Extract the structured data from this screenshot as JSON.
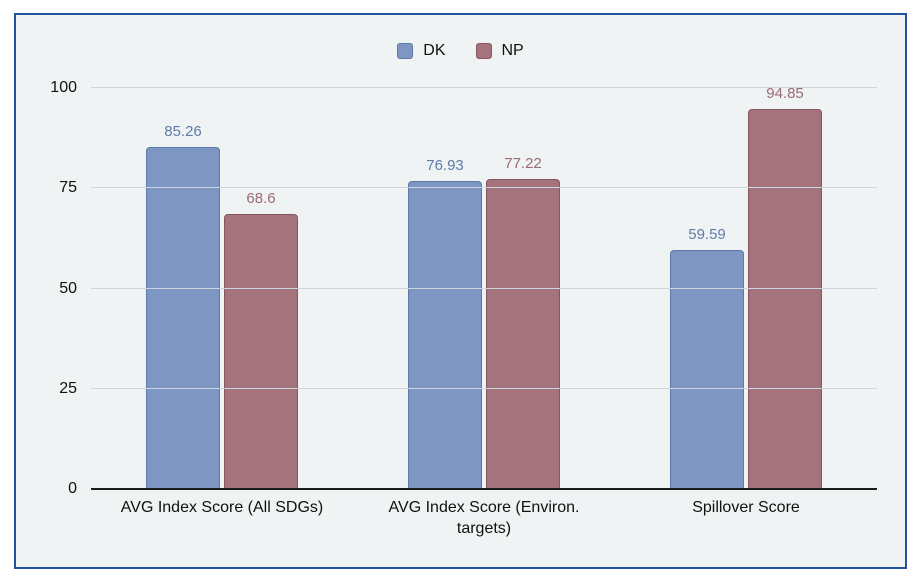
{
  "frame": {
    "border_color": "#24529e",
    "background": "#eff3f4"
  },
  "legend": {
    "position": "top-center",
    "items": [
      {
        "label": "DK",
        "color": "#7e97c2",
        "border_color": "#5b79a9"
      },
      {
        "label": "NP",
        "color": "#a5737b",
        "border_color": "#85565f"
      }
    ]
  },
  "chart_data": {
    "type": "bar",
    "title": "",
    "xlabel": "",
    "ylabel": "",
    "categories": [
      "AVG Index Score (All SDGs)",
      "AVG Index Score (Environ. targets)",
      "Spillover Score"
    ],
    "series": [
      {
        "name": "DK",
        "values": [
          85.26,
          76.93,
          59.59
        ],
        "value_labels": [
          "85.26",
          "76.93",
          "59.59"
        ],
        "color": "#7e97c2",
        "border_color": "#5b79a9",
        "label_color": "#5f7ca8"
      },
      {
        "name": "NP",
        "values": [
          68.6,
          77.22,
          94.85
        ],
        "value_labels": [
          "68.6",
          "77.22",
          "94.85"
        ],
        "color": "#a5737b",
        "border_color": "#85565f",
        "label_color": "#9b6a74"
      }
    ],
    "ylim": [
      0,
      100
    ],
    "yticks": [
      0,
      25,
      50,
      75,
      100
    ],
    "grid": true,
    "gridline_color": "#ccd5de",
    "axis_line_color": "#1c1c1c",
    "legend_position": "top-center"
  }
}
